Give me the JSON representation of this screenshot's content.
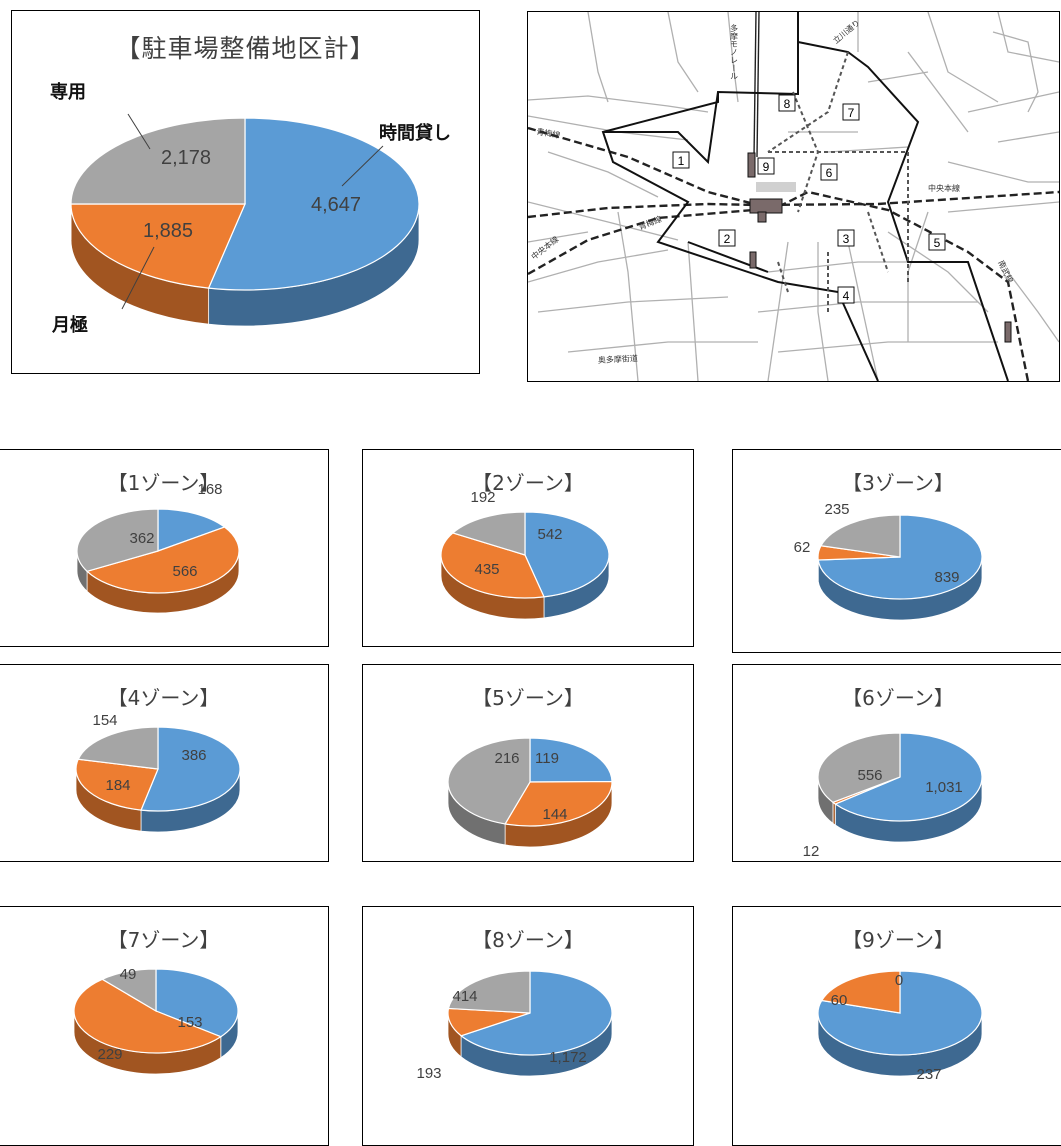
{
  "colors": {
    "時間貸し": "#5b9bd5",
    "月極": "#ed7d31",
    "専用": "#a5a5a5"
  },
  "chart_data": [
    {
      "type": "pie",
      "title": "【駐車場整備地区計】",
      "categories": [
        "時間貸し",
        "月極",
        "専用"
      ],
      "values": [
        4647,
        1885,
        2178
      ],
      "value_labels": [
        "4,647",
        "1,885",
        "2,178"
      ],
      "legend_labels": [
        "時間貸し",
        "月極",
        "専用"
      ]
    },
    {
      "type": "pie",
      "title": "【1ゾーン】",
      "categories": [
        "時間貸し",
        "月極",
        "専用"
      ],
      "values": [
        168,
        566,
        362
      ],
      "value_labels": [
        "168",
        "566",
        "362"
      ]
    },
    {
      "type": "pie",
      "title": "【2ゾーン】",
      "categories": [
        "時間貸し",
        "月極",
        "専用"
      ],
      "values": [
        542,
        435,
        192
      ],
      "value_labels": [
        "542",
        "435",
        "192"
      ]
    },
    {
      "type": "pie",
      "title": "【3ゾーン】",
      "categories": [
        "時間貸し",
        "月極",
        "専用"
      ],
      "values": [
        839,
        62,
        235
      ],
      "value_labels": [
        "839",
        "62",
        "235"
      ]
    },
    {
      "type": "pie",
      "title": "【4ゾーン】",
      "categories": [
        "時間貸し",
        "月極",
        "専用"
      ],
      "values": [
        386,
        184,
        154
      ],
      "value_labels": [
        "386",
        "184",
        "154"
      ]
    },
    {
      "type": "pie",
      "title": "【5ゾーン】",
      "categories": [
        "時間貸し",
        "月極",
        "専用"
      ],
      "values": [
        119,
        144,
        216
      ],
      "value_labels": [
        "119",
        "144",
        "216"
      ]
    },
    {
      "type": "pie",
      "title": "【6ゾーン】",
      "categories": [
        "時間貸し",
        "月極",
        "専用"
      ],
      "values": [
        1031,
        12,
        556
      ],
      "value_labels": [
        "1,031",
        "12",
        "556"
      ]
    },
    {
      "type": "pie",
      "title": "【7ゾーン】",
      "categories": [
        "時間貸し",
        "月極",
        "専用"
      ],
      "values": [
        153,
        229,
        49
      ],
      "value_labels": [
        "153",
        "229",
        "49"
      ]
    },
    {
      "type": "pie",
      "title": "【8ゾーン】",
      "categories": [
        "時間貸し",
        "月極",
        "専用"
      ],
      "values": [
        1172,
        193,
        414
      ],
      "value_labels": [
        "1,172",
        "193",
        "414"
      ]
    },
    {
      "type": "pie",
      "title": "【9ゾーン】",
      "categories": [
        "時間貸し",
        "月極",
        "専用"
      ],
      "values": [
        237,
        60,
        0
      ],
      "value_labels": [
        "237",
        "60",
        "0"
      ]
    }
  ],
  "map": {
    "zone_labels": [
      "1",
      "2",
      "3",
      "4",
      "5",
      "6",
      "7",
      "8",
      "9"
    ],
    "street_labels": {
      "tama_monorail": "多摩モノレール",
      "tachikawa_dori": "立川通り",
      "ome_line_1": "青梅線",
      "ome_line_2": "青梅線",
      "chuo_line_left": "中央本線",
      "chuo_line_right": "中央本線",
      "nambu_line": "南武線",
      "okutama_kaido": "奥多摩街道"
    }
  }
}
